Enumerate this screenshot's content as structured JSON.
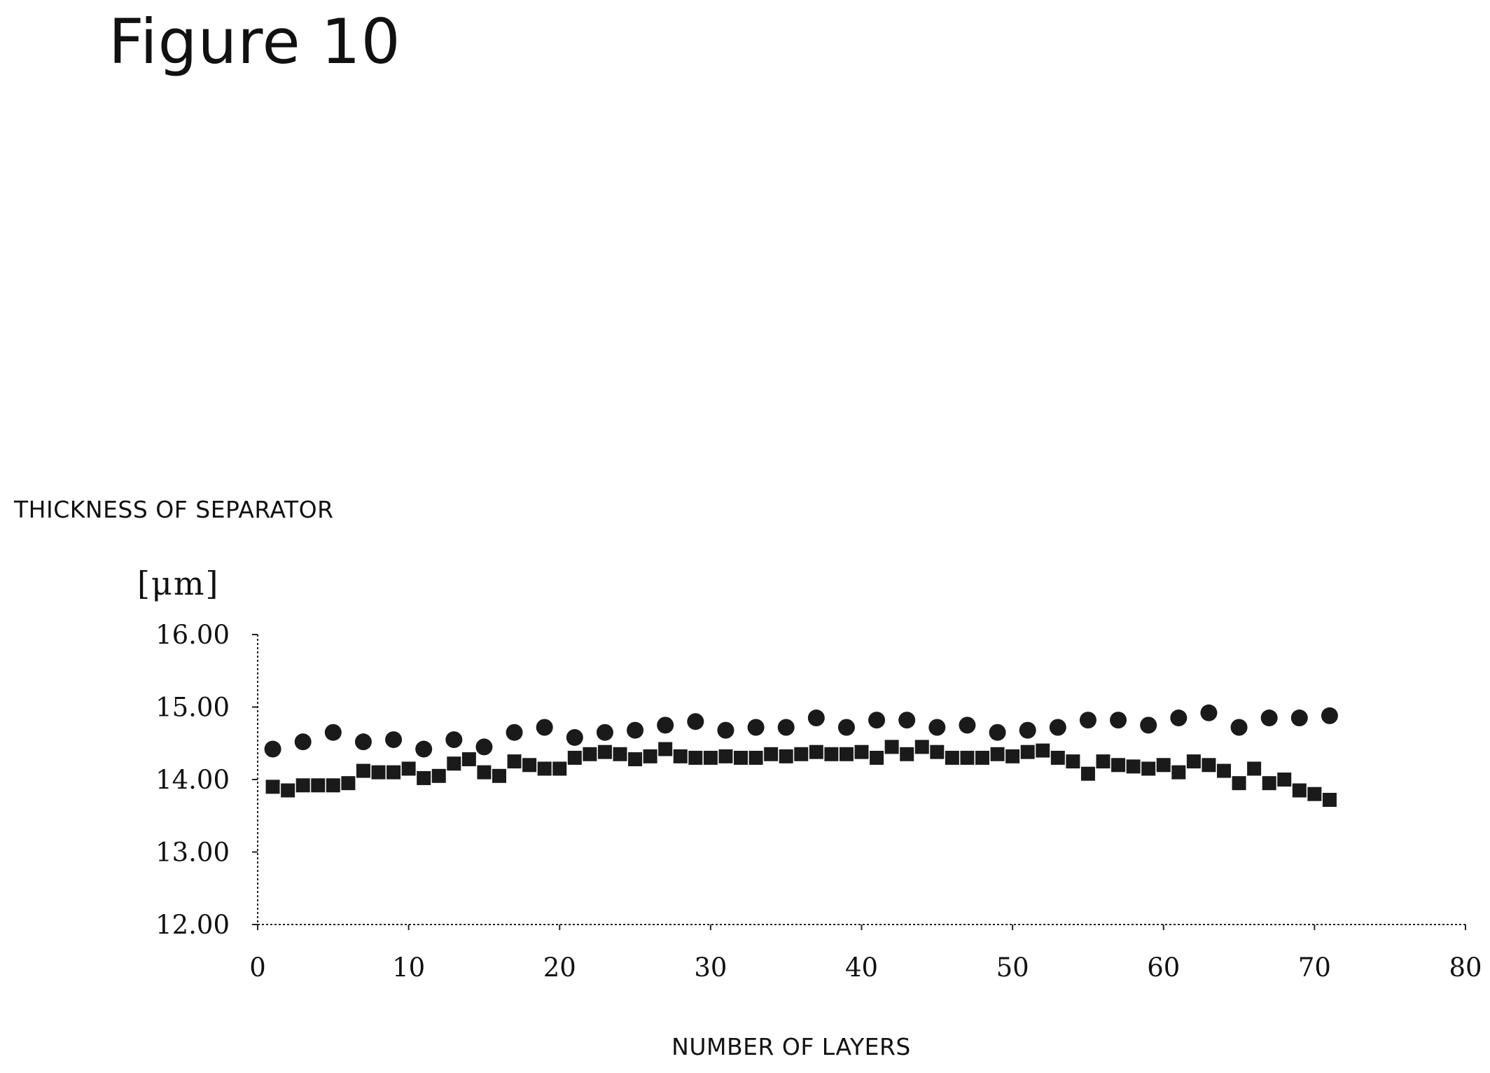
{
  "figure": {
    "title": "Figure 10"
  },
  "chart_data": {
    "type": "scatter",
    "title": "",
    "ylabel": "THICKNESS OF SEPARATOR",
    "yunit": "[μm]",
    "xlabel": "NUMBER OF LAYERS",
    "xlim": [
      0,
      80
    ],
    "ylim": [
      12.0,
      16.0
    ],
    "xticks": [
      0,
      10,
      20,
      30,
      40,
      50,
      60,
      70,
      80
    ],
    "xtick_labels": [
      "0",
      "10",
      "20",
      "30",
      "40",
      "50",
      "60",
      "70",
      "80"
    ],
    "yticks": [
      12,
      13,
      14,
      15,
      16
    ],
    "ytick_labels": [
      "12.00",
      "13.00",
      "14.00",
      "15.00",
      "16.00"
    ],
    "grid": false,
    "series": [
      {
        "marker": "circle",
        "color": "#1a1a1a",
        "x": [
          1,
          3,
          5,
          7,
          9,
          11,
          13,
          15,
          17,
          19,
          21,
          23,
          25,
          27,
          29,
          31,
          33,
          35,
          37,
          39,
          41,
          43,
          45,
          47,
          49,
          51,
          53,
          55,
          57,
          59,
          61,
          63,
          65,
          67,
          69,
          71
        ],
        "y": [
          14.42,
          14.52,
          14.65,
          14.52,
          14.55,
          14.42,
          14.55,
          14.45,
          14.65,
          14.72,
          14.58,
          14.65,
          14.68,
          14.75,
          14.8,
          14.68,
          14.72,
          14.72,
          14.85,
          14.72,
          14.82,
          14.82,
          14.72,
          14.75,
          14.65,
          14.68,
          14.72,
          14.82,
          14.82,
          14.75,
          14.85,
          14.92,
          14.72,
          14.85,
          14.85,
          14.88
        ]
      },
      {
        "marker": "square",
        "color": "#1a1a1a",
        "x": [
          1,
          2,
          3,
          4,
          5,
          6,
          7,
          8,
          9,
          10,
          11,
          12,
          13,
          14,
          15,
          16,
          17,
          18,
          19,
          20,
          21,
          22,
          23,
          24,
          25,
          26,
          27,
          28,
          29,
          30,
          31,
          32,
          33,
          34,
          35,
          36,
          37,
          38,
          39,
          40,
          41,
          42,
          43,
          44,
          45,
          46,
          47,
          48,
          49,
          50,
          51,
          52,
          53,
          54,
          55,
          56,
          57,
          58,
          59,
          60,
          61,
          62,
          63,
          64,
          65,
          66,
          67,
          68,
          69,
          70,
          71
        ],
        "y": [
          13.9,
          13.85,
          13.92,
          13.92,
          13.92,
          13.95,
          14.12,
          14.1,
          14.1,
          14.15,
          14.02,
          14.05,
          14.22,
          14.28,
          14.1,
          14.05,
          14.25,
          14.2,
          14.15,
          14.15,
          14.3,
          14.35,
          14.38,
          14.35,
          14.28,
          14.32,
          14.42,
          14.32,
          14.3,
          14.3,
          14.32,
          14.3,
          14.3,
          14.35,
          14.32,
          14.35,
          14.38,
          14.35,
          14.35,
          14.38,
          14.3,
          14.45,
          14.35,
          14.45,
          14.38,
          14.3,
          14.3,
          14.3,
          14.35,
          14.32,
          14.38,
          14.4,
          14.3,
          14.25,
          14.08,
          14.25,
          14.2,
          14.18,
          14.15,
          14.2,
          14.1,
          14.25,
          14.2,
          14.12,
          13.95,
          14.15,
          13.95,
          14.0,
          13.85,
          13.8,
          13.72
        ]
      }
    ]
  }
}
